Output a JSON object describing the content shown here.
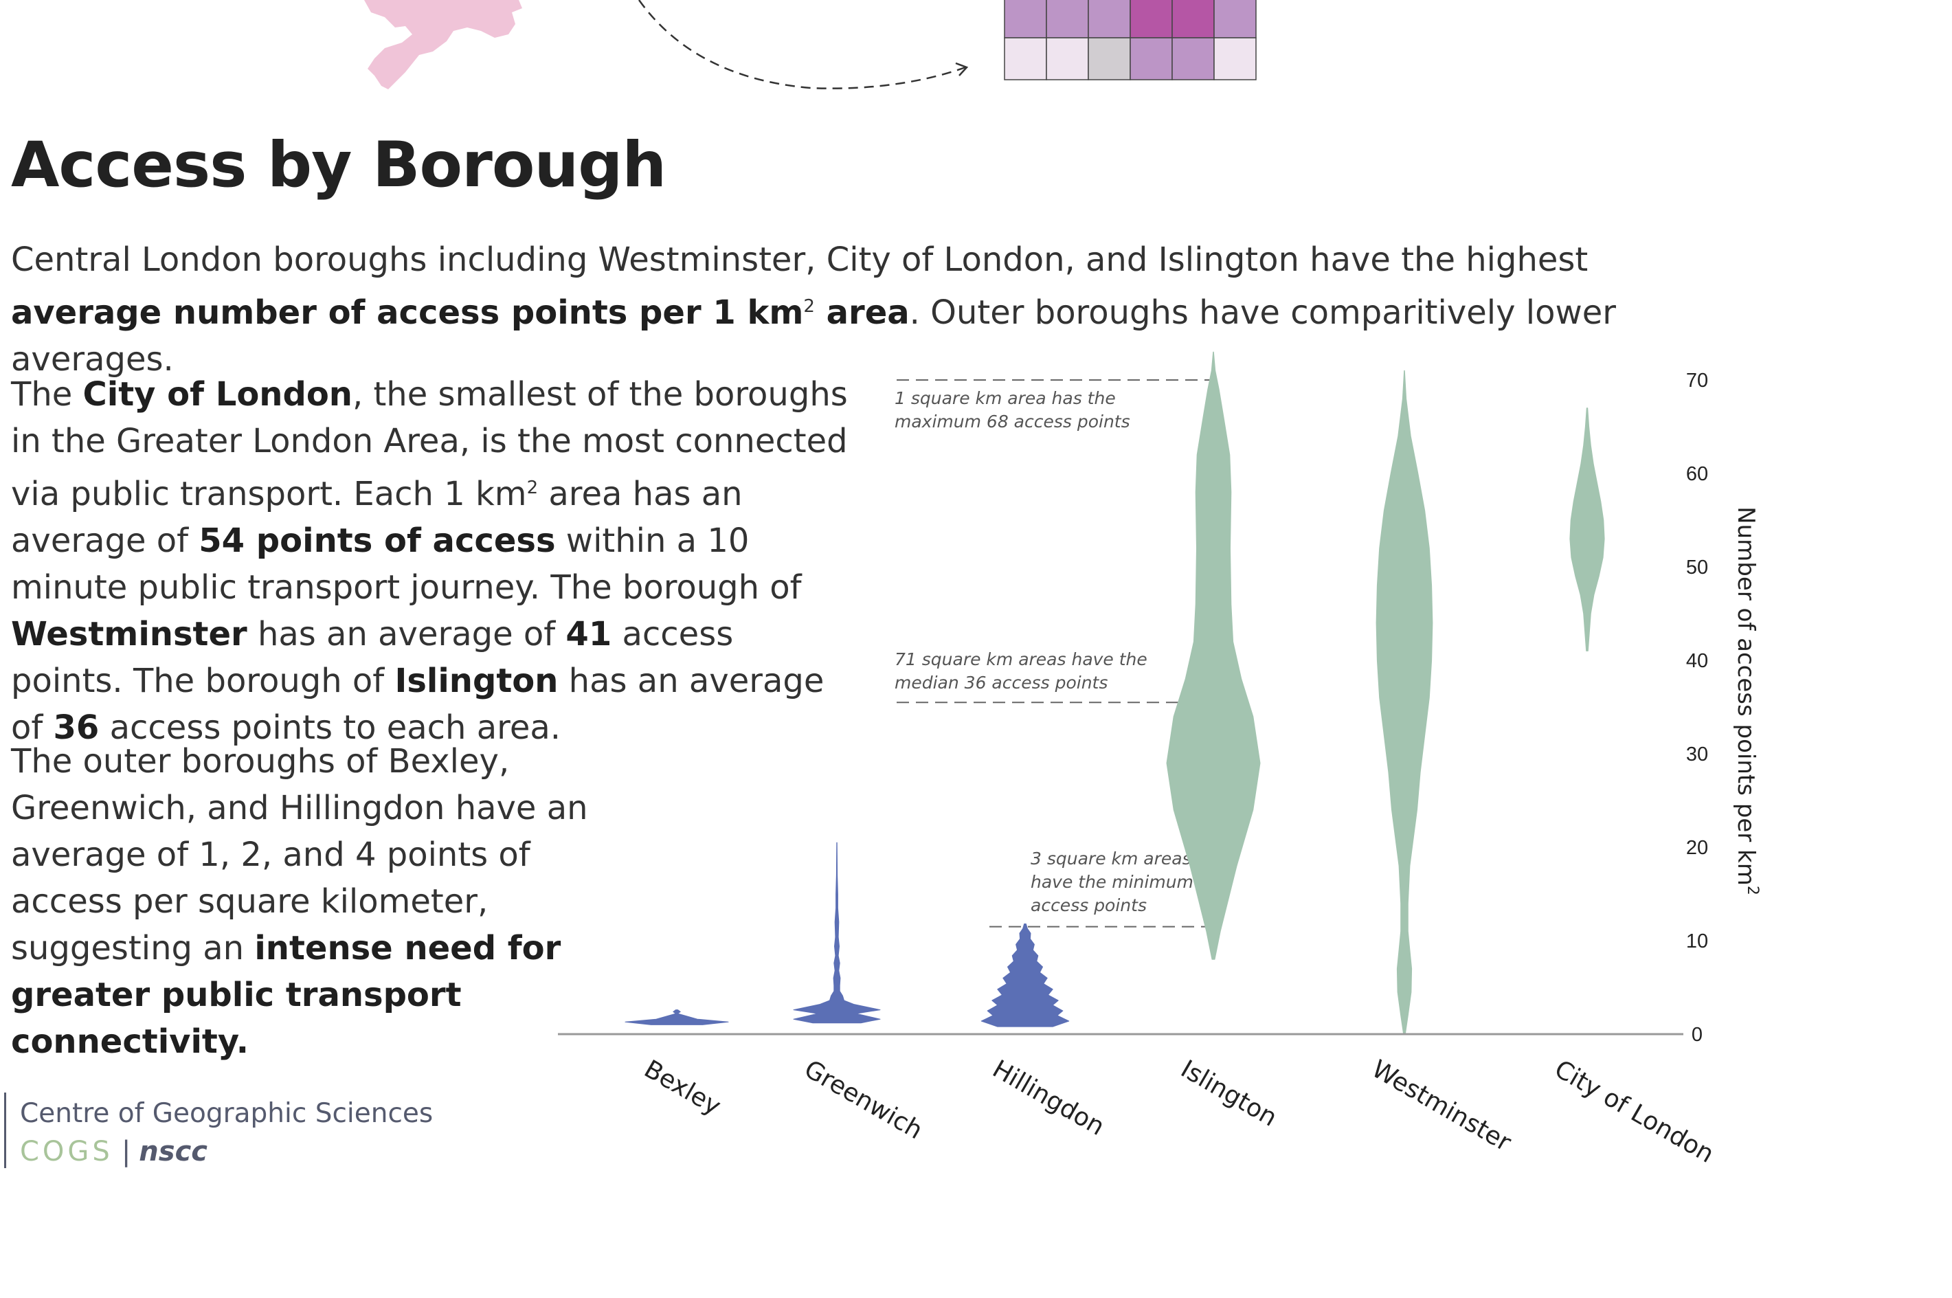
{
  "title": "Access by Borough",
  "intro": {
    "t1": "Central London boroughs including Westminster, City of London, and Islington have the highest ",
    "b1": "average number of access points per 1 km",
    "sup": "2",
    "b2": " area",
    "t2": ". Outer boroughs have comparitively lower averages."
  },
  "para_city": {
    "t1": "The ",
    "b1": "City of London",
    "t2": ", the smallest of the boroughs in the Greater London Area, is the most connected via public transport. Each 1 km",
    "sup": "2",
    "t3": " area has an average of ",
    "b2": "54 points of access",
    "t4": " within a 10 minute public transport journey. The borough of ",
    "b3": "Westminster",
    "t5": " has an average of ",
    "b4": "41",
    "t6": " access points. The borough of ",
    "b5": "Islington",
    "t7": " has an average of ",
    "b6": "36",
    "t8": " access points to each area."
  },
  "para_outer": {
    "t1": "The outer boroughs of Bexley, Greenwich, and Hillingdon have an average of 1, 2, and 4 points of access per square kilometer, suggesting an ",
    "b1": "intense need for greater public transport connectivity."
  },
  "logo": {
    "line1": "Centre of Geographic Sciences",
    "cogs": "COGS",
    "sep": "|",
    "nscc": "nscc"
  },
  "colors": {
    "central": "#a3c4b0",
    "outer": "#5b6fb5",
    "decor_map": "#f0c4d8",
    "grid_light": "#efe4ef",
    "grid_mid": "#bc95c6",
    "grid_dark": "#b556a5",
    "grid_grey": "#d1cdd1"
  },
  "chart_data": {
    "type": "violin",
    "ylabel": "Number of access points per km",
    "ylabel_sup": "2",
    "ylim": [
      0,
      70
    ],
    "yticks": [
      0,
      10,
      20,
      30,
      40,
      50,
      60,
      70
    ],
    "categories": [
      "Bexley",
      "Greenwich",
      "Hillingdon",
      "Islington",
      "Westminster",
      "City of London"
    ],
    "averages": [
      1,
      2,
      4,
      36,
      41,
      54
    ],
    "distributions": [
      {
        "name": "Bexley",
        "profile": [
          [
            1,
            0.5
          ],
          [
            1.3,
            1
          ],
          [
            1.6,
            0.4
          ],
          [
            2.2,
            0.02
          ],
          [
            2.4,
            0.07
          ],
          [
            2.6,
            0.02
          ]
        ]
      },
      {
        "name": "Greenwich",
        "profile": [
          [
            1.2,
            0.5
          ],
          [
            1.6,
            0.9
          ],
          [
            2.2,
            0.4
          ],
          [
            2.6,
            0.9
          ],
          [
            3.2,
            0.35
          ],
          [
            3.6,
            0.15
          ],
          [
            4.1,
            0.12
          ],
          [
            4.6,
            0.06
          ],
          [
            5.2,
            0.06
          ],
          [
            6,
            0.07
          ],
          [
            6.8,
            0.04
          ],
          [
            7.6,
            0.06
          ],
          [
            8.4,
            0.03
          ],
          [
            9.4,
            0.05
          ],
          [
            10.4,
            0.03
          ],
          [
            12,
            0.04
          ],
          [
            13.5,
            0.02
          ],
          [
            15,
            0.02
          ],
          [
            17,
            0.008
          ],
          [
            19,
            0.006
          ],
          [
            20.5,
            0.003
          ]
        ]
      },
      {
        "name": "Hillingdon",
        "profile": [
          [
            0.8,
            0.6
          ],
          [
            1.4,
            0.95
          ],
          [
            2,
            0.7
          ],
          [
            2.5,
            0.82
          ],
          [
            3.1,
            0.6
          ],
          [
            3.6,
            0.72
          ],
          [
            4.2,
            0.5
          ],
          [
            4.8,
            0.6
          ],
          [
            5.4,
            0.4
          ],
          [
            6,
            0.48
          ],
          [
            6.6,
            0.32
          ],
          [
            7.2,
            0.38
          ],
          [
            7.8,
            0.25
          ],
          [
            8.4,
            0.28
          ],
          [
            9,
            0.17
          ],
          [
            9.6,
            0.2
          ],
          [
            10.2,
            0.11
          ],
          [
            10.8,
            0.12
          ],
          [
            11.3,
            0.05
          ],
          [
            11.8,
            0.02
          ]
        ]
      },
      {
        "name": "Islington",
        "profile": [
          [
            8,
            0.03
          ],
          [
            11,
            0.15
          ],
          [
            14,
            0.3
          ],
          [
            18,
            0.5
          ],
          [
            24,
            0.85
          ],
          [
            29,
            1
          ],
          [
            34,
            0.85
          ],
          [
            38,
            0.6
          ],
          [
            42,
            0.42
          ],
          [
            46,
            0.38
          ],
          [
            52,
            0.36
          ],
          [
            58,
            0.38
          ],
          [
            62,
            0.35
          ],
          [
            66,
            0.22
          ],
          [
            69,
            0.12
          ],
          [
            71,
            0.04
          ],
          [
            73,
            0.005
          ]
        ]
      },
      {
        "name": "Westminster",
        "profile": [
          [
            0,
            0.02
          ],
          [
            2,
            0.08
          ],
          [
            4.5,
            0.15
          ],
          [
            7,
            0.16
          ],
          [
            9,
            0.12
          ],
          [
            11,
            0.08
          ],
          [
            14,
            0.08
          ],
          [
            18,
            0.12
          ],
          [
            24,
            0.28
          ],
          [
            28,
            0.35
          ],
          [
            32,
            0.45
          ],
          [
            36,
            0.55
          ],
          [
            40,
            0.6
          ],
          [
            44,
            0.62
          ],
          [
            48,
            0.6
          ],
          [
            52,
            0.55
          ],
          [
            56,
            0.45
          ],
          [
            60,
            0.3
          ],
          [
            64,
            0.14
          ],
          [
            68,
            0.04
          ],
          [
            71,
            0.005
          ]
        ]
      },
      {
        "name": "City of London",
        "profile": [
          [
            41,
            0.02
          ],
          [
            43,
            0.05
          ],
          [
            45,
            0.08
          ],
          [
            47,
            0.15
          ],
          [
            49,
            0.26
          ],
          [
            51,
            0.35
          ],
          [
            53,
            0.38
          ],
          [
            55,
            0.36
          ],
          [
            57,
            0.3
          ],
          [
            59,
            0.22
          ],
          [
            61,
            0.14
          ],
          [
            63,
            0.08
          ],
          [
            65,
            0.04
          ],
          [
            67,
            0.01
          ]
        ]
      }
    ],
    "annotations": [
      {
        "lines": [
          "1 square km area has the",
          "maximum 68 access points"
        ],
        "value": 70
      },
      {
        "lines": [
          "71 square km areas have the",
          "median 36 access points"
        ],
        "value": 35.5
      },
      {
        "lines": [
          "3 square km areas",
          "have the minimum 14",
          "access points"
        ],
        "value": 11.5
      }
    ]
  }
}
